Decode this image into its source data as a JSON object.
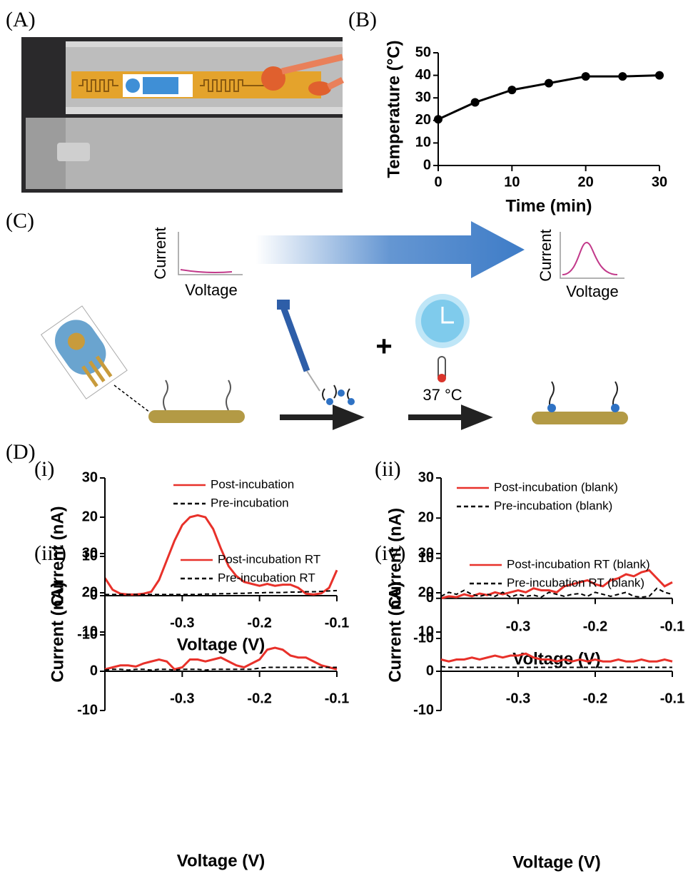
{
  "panels": [
    "(A)",
    "(B)",
    "(C)",
    "(D)"
  ],
  "diagram": {
    "before_y": "Current",
    "before_x": "Voltage",
    "after_y": "Current",
    "after_x": "Voltage",
    "plus": "+",
    "temperature": "37 °C"
  },
  "chart_data": [
    {
      "type": "line",
      "x_label": "Time (min)",
      "y_label": "Temperature (°C)",
      "x": [
        0,
        5,
        10,
        15,
        20,
        25,
        30
      ],
      "series": [
        {
          "color": "#000000",
          "markers": true,
          "values": [
            20.5,
            28,
            33.5,
            36.5,
            39.5,
            39.5,
            40
          ]
        }
      ],
      "xlim": [
        0,
        30
      ],
      "xticks": [
        0,
        10,
        20,
        30
      ],
      "ylim": [
        0,
        50
      ],
      "yticks": [
        0,
        10,
        20,
        30,
        40,
        50
      ]
    },
    {
      "type": "line",
      "label": "(i)",
      "x_label": "Voltage (V)",
      "y_label": "Current (nA)",
      "x": [
        -0.4,
        -0.39,
        -0.38,
        -0.37,
        -0.36,
        -0.35,
        -0.34,
        -0.33,
        -0.32,
        -0.31,
        -0.3,
        -0.29,
        -0.28,
        -0.27,
        -0.26,
        -0.25,
        -0.24,
        -0.23,
        -0.22,
        -0.21,
        -0.2,
        -0.19,
        -0.18,
        -0.17,
        -0.16,
        -0.15,
        -0.14,
        -0.13,
        -0.12,
        -0.11,
        -0.1
      ],
      "series": [
        {
          "name": "Post-incubation",
          "color": "#e8312a",
          "line_style": "solid",
          "values": [
            4.5,
            1.5,
            0.5,
            0.3,
            0.3,
            0.5,
            1,
            4,
            9,
            14,
            18,
            20,
            20.5,
            20,
            17,
            12,
            7.5,
            5,
            3.5,
            3,
            2.5,
            3,
            2.5,
            2.8,
            2.8,
            2,
            0.5,
            0.3,
            0.6,
            2,
            6.5
          ]
        },
        {
          "name": "Pre-incubation",
          "color": "#000000",
          "line_style": "dashed",
          "values": [
            0.3,
            0.3,
            0.3,
            0.3,
            0.3,
            0.3,
            0.3,
            0.3,
            0.3,
            0.3,
            0.3,
            0.3,
            0.3,
            0.4,
            0.4,
            0.5,
            0.5,
            0.6,
            0.6,
            0.7,
            0.7,
            0.8,
            0.8,
            0.8,
            0.9,
            0.9,
            1,
            1,
            1.1,
            1.2,
            1.3
          ]
        }
      ],
      "xlim": [
        -0.4,
        -0.1
      ],
      "xticks": [
        -0.3,
        -0.2,
        -0.1
      ],
      "ylim": [
        -10,
        30
      ],
      "yticks": [
        -10,
        0,
        10,
        20,
        30
      ]
    },
    {
      "type": "line",
      "label": "(ii)",
      "x_label": "Voltage (V)",
      "y_label": "Current (nA)",
      "x": [
        -0.4,
        -0.39,
        -0.38,
        -0.37,
        -0.36,
        -0.35,
        -0.34,
        -0.33,
        -0.32,
        -0.31,
        -0.3,
        -0.29,
        -0.28,
        -0.27,
        -0.26,
        -0.25,
        -0.24,
        -0.23,
        -0.22,
        -0.21,
        -0.2,
        -0.19,
        -0.18,
        -0.17,
        -0.16,
        -0.15,
        -0.14,
        -0.13,
        -0.12,
        -0.11,
        -0.1
      ],
      "series": [
        {
          "name": "Post-incubation (blank)",
          "color": "#e8312a",
          "line_style": "solid",
          "values": [
            0,
            0.5,
            0.3,
            1,
            0.5,
            1.2,
            0.8,
            1.5,
            1,
            1.5,
            2,
            1.5,
            2.5,
            2,
            2,
            1.5,
            3,
            3.5,
            4,
            4.5,
            3.5,
            3,
            4.5,
            5,
            6,
            5.5,
            6.5,
            7,
            5,
            3,
            4
          ]
        },
        {
          "name": "Pre-incubation (blank)",
          "color": "#000000",
          "line_style": "dashed",
          "values": [
            0.5,
            1.5,
            1,
            2,
            1,
            0.5,
            1,
            0.5,
            1.5,
            0.3,
            1,
            0.5,
            0.8,
            0.3,
            1.5,
            1,
            0.5,
            1,
            1.2,
            0.5,
            1.5,
            1,
            0.5,
            1,
            1.5,
            0.5,
            0.3,
            0.5,
            2.5,
            1.5,
            1
          ]
        }
      ],
      "xlim": [
        -0.4,
        -0.1
      ],
      "xticks": [
        -0.3,
        -0.2,
        -0.1
      ],
      "ylim": [
        -10,
        30
      ],
      "yticks": [
        -10,
        0,
        10,
        20,
        30
      ]
    },
    {
      "type": "line",
      "label": "(iii)",
      "x_label": "Voltage (V)",
      "y_label": "Current (nA)",
      "x": [
        -0.4,
        -0.39,
        -0.38,
        -0.37,
        -0.36,
        -0.35,
        -0.34,
        -0.33,
        -0.32,
        -0.31,
        -0.3,
        -0.29,
        -0.28,
        -0.27,
        -0.26,
        -0.25,
        -0.24,
        -0.23,
        -0.22,
        -0.21,
        -0.2,
        -0.19,
        -0.18,
        -0.17,
        -0.16,
        -0.15,
        -0.14,
        -0.13,
        -0.12,
        -0.11,
        -0.1
      ],
      "series": [
        {
          "name": "Post-incubation RT",
          "color": "#e8312a",
          "line_style": "solid",
          "values": [
            0.5,
            1,
            1.5,
            1.5,
            1.2,
            2,
            2.5,
            3,
            2.5,
            0.5,
            1,
            3,
            3,
            2.5,
            3,
            3.5,
            2.5,
            1.5,
            1,
            2,
            3,
            5.5,
            6,
            5.5,
            4,
            3.5,
            3.5,
            2.5,
            1.5,
            1,
            0.5
          ]
        },
        {
          "name": "Pre-incubation RT",
          "color": "#000000",
          "line_style": "dashed",
          "values": [
            0.3,
            0.5,
            0.5,
            0.3,
            0.5,
            0.5,
            0.3,
            0.5,
            0.5,
            0.3,
            0.5,
            0.5,
            0.5,
            0.3,
            0.5,
            0.5,
            0.5,
            0.5,
            0.5,
            0.5,
            0.8,
            1,
            1,
            1,
            1,
            1,
            1,
            1,
            1,
            1,
            1
          ]
        }
      ],
      "xlim": [
        -0.4,
        -0.1
      ],
      "xticks": [
        -0.3,
        -0.2,
        -0.1
      ],
      "ylim": [
        -10,
        30
      ],
      "yticks": [
        -10,
        0,
        10,
        20,
        30
      ]
    },
    {
      "type": "line",
      "label": "(iv)",
      "x_label": "Voltage (V)",
      "y_label": "Current (nA)",
      "x": [
        -0.4,
        -0.39,
        -0.38,
        -0.37,
        -0.36,
        -0.35,
        -0.34,
        -0.33,
        -0.32,
        -0.31,
        -0.3,
        -0.29,
        -0.28,
        -0.27,
        -0.26,
        -0.25,
        -0.24,
        -0.23,
        -0.22,
        -0.21,
        -0.2,
        -0.19,
        -0.18,
        -0.17,
        -0.16,
        -0.15,
        -0.14,
        -0.13,
        -0.12,
        -0.11,
        -0.1
      ],
      "series": [
        {
          "name": "Post-incubation RT (blank)",
          "color": "#e8312a",
          "line_style": "solid",
          "values": [
            3,
            2.5,
            3,
            3,
            3.5,
            3,
            3.5,
            4,
            3.5,
            4,
            4,
            4.5,
            3.5,
            3,
            3,
            2.5,
            3,
            2.5,
            3,
            2.5,
            3,
            2.5,
            2.5,
            3,
            2.5,
            2.5,
            3,
            2.5,
            2.5,
            3,
            2.5
          ]
        },
        {
          "name": "Pre-incubation RT (blank)",
          "color": "#000000",
          "line_style": "dashed",
          "values": [
            1.2,
            1,
            1,
            1,
            1,
            1,
            1,
            1,
            1,
            1,
            1,
            1,
            1,
            1,
            1,
            1,
            1,
            1,
            1,
            1,
            1,
            1,
            1,
            1,
            1,
            1,
            1,
            1,
            1,
            1,
            1
          ]
        }
      ],
      "xlim": [
        -0.4,
        -0.1
      ],
      "xticks": [
        -0.3,
        -0.2,
        -0.1
      ],
      "ylim": [
        -10,
        30
      ],
      "yticks": [
        -10,
        0,
        10,
        20,
        30
      ]
    }
  ]
}
